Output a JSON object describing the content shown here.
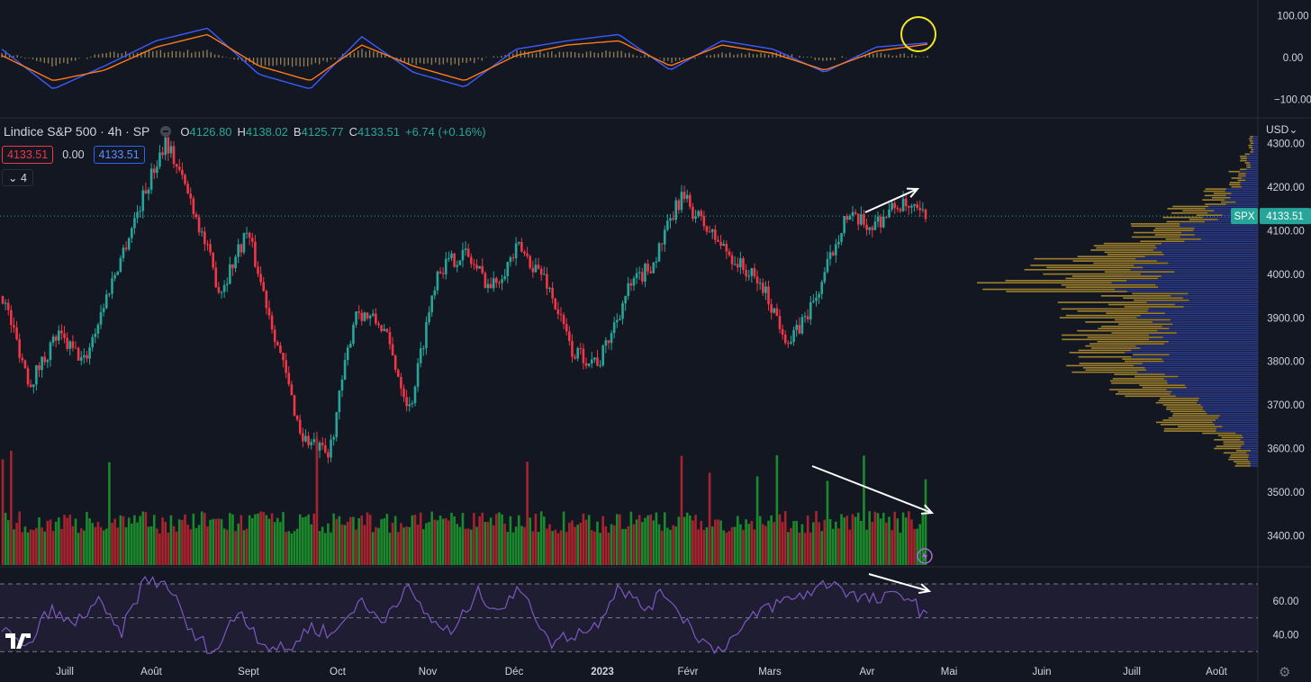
{
  "header": {
    "symbol": "Lindice S&P 500 · 4h · SP",
    "open_label": "O",
    "open": "4126.80",
    "high_label": "H",
    "high": "4138.02",
    "low_label": "B",
    "low": "4125.77",
    "close_label": "C",
    "close": "4133.51",
    "change": "+6.74 (+0.16%)",
    "bid": "4133.51",
    "spread": "0.00",
    "ask": "4133.51",
    "indicators_count": "4",
    "currency": "USD"
  },
  "price_tag": {
    "symbol": "SPX",
    "value": "4133.51"
  },
  "colors": {
    "background": "#131722",
    "up": "#26a69a",
    "down": "#f23645",
    "volume_up": "#1b8a2c",
    "volume_down": "#a8232e",
    "macd": "#3d5afe",
    "signal": "#ff7a1a",
    "histogram": "#8d7b52",
    "rsi": "#7e57c2",
    "profile_up": "#2f3f99",
    "profile_down": "#b08d2e",
    "annotation": "#ffffff",
    "highlight_circle": "#f5e625"
  },
  "chart_data": [
    {
      "type": "line",
      "name": "MACD panel",
      "y_ticks": [
        "100.00",
        "0.00",
        "−100.00"
      ],
      "ylim": [
        -120,
        120
      ],
      "x": [
        "Juill",
        "",
        "Août",
        "",
        "Sept",
        "",
        "Oct",
        "",
        "Nov",
        "",
        "Déc",
        "",
        "2023",
        "",
        "Févr",
        "",
        "Mars",
        "",
        "Avr"
      ],
      "series": [
        {
          "values": [
            20,
            -75,
            -20,
            40,
            70,
            -40,
            -75,
            50,
            -35,
            -70,
            20,
            40,
            55,
            -30,
            40,
            20,
            -35,
            25,
            35
          ]
        },
        {
          "values": [
            5,
            -55,
            -30,
            25,
            55,
            -20,
            -55,
            30,
            -20,
            -55,
            5,
            30,
            40,
            -20,
            30,
            10,
            -30,
            15,
            32
          ]
        }
      ],
      "histogram": [
        15,
        -20,
        10,
        15,
        15,
        -20,
        -20,
        20,
        -15,
        -15,
        15,
        10,
        15,
        -10,
        10,
        10,
        -5,
        10,
        3
      ],
      "annotation": "yellow circle at latest MACD/signal cross"
    },
    {
      "type": "candlestick",
      "name": "Price panel",
      "y_ticks": [
        "4300.00",
        "4200.00",
        "4100.00",
        "4000.00",
        "3900.00",
        "3800.00",
        "3700.00",
        "3600.00",
        "3500.00",
        "3400.00"
      ],
      "ylim": [
        3360,
        4340
      ],
      "x_ticks": [
        "Juill",
        "Août",
        "Sept",
        "Oct",
        "Nov",
        "Déc",
        "2023",
        "Févr",
        "Mars",
        "Avr",
        "Mai",
        "Juin",
        "Juill",
        "Août"
      ],
      "close_path": [
        3950,
        3750,
        3860,
        3800,
        3980,
        4150,
        4310,
        4160,
        3960,
        4100,
        3870,
        3630,
        3580,
        3920,
        3880,
        3690,
        4010,
        4050,
        3970,
        4060,
        3990,
        3820,
        3800,
        3960,
        4030,
        4180,
        4100,
        4030,
        3970,
        3840,
        3950,
        4130,
        4110,
        4160,
        4130
      ],
      "last": 4133.51,
      "volume_profile": {
        "price_levels": [
          3560,
          3600,
          3640,
          3680,
          3720,
          3760,
          3800,
          3840,
          3880,
          3920,
          3960,
          4000,
          4040,
          4080,
          4120,
          4160,
          4200,
          4240,
          4280
        ],
        "up_volume": [
          5,
          10,
          20,
          30,
          40,
          55,
          60,
          50,
          55,
          50,
          65,
          60,
          50,
          40,
          25,
          15,
          8,
          5,
          3
        ],
        "down_volume": [
          10,
          15,
          25,
          20,
          25,
          30,
          25,
          40,
          35,
          40,
          60,
          50,
          30,
          25,
          18,
          10,
          5,
          3,
          2
        ]
      },
      "annotations": [
        "arrow up over recent high",
        "arrow down over volume"
      ]
    },
    {
      "type": "line",
      "name": "RSI panel",
      "y_ticks": [
        "60.00",
        "40.00"
      ],
      "ylim": [
        28,
        78
      ],
      "bands": [
        70,
        50,
        30
      ],
      "values": [
        45,
        30,
        55,
        45,
        60,
        40,
        72,
        70,
        40,
        30,
        55,
        35,
        30,
        45,
        40,
        60,
        48,
        68,
        50,
        40,
        65,
        55,
        68,
        35,
        40,
        45,
        70,
        55,
        65,
        45,
        30,
        40,
        55,
        60,
        65,
        72,
        62,
        60,
        65,
        50
      ],
      "annotation": "arrow down over recent RSI"
    }
  ]
}
